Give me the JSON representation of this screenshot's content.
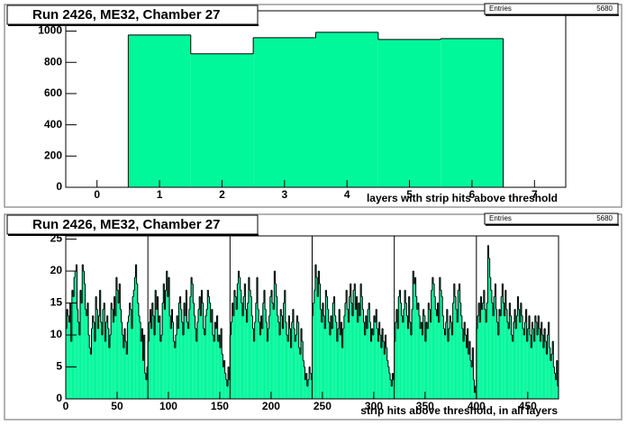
{
  "chart_data": [
    {
      "type": "histogram",
      "title": "Run 2426, ME32, Chamber 27",
      "x_label": "layers with strip hits above threshold",
      "stats": {
        "label": "Entries",
        "value": 5680
      },
      "bins": [
        -0.5,
        0.5,
        1.5,
        2.5,
        3.5,
        4.5,
        5.5,
        6.5,
        7.5
      ],
      "values": [
        0,
        975,
        855,
        958,
        992,
        946,
        952,
        0
      ],
      "color": "#00f79a",
      "xlim": [
        -0.5,
        7.5
      ],
      "xticks": [
        0,
        1,
        2,
        3,
        4,
        5,
        6,
        7
      ],
      "ylim": [
        0,
        1130
      ],
      "yticks": [
        0,
        200,
        400,
        600,
        800,
        1000
      ]
    },
    {
      "type": "histogram",
      "title": "Run 2426, ME32, Chamber 27",
      "x_label": "strip hits above threshold, in all layers",
      "stats": {
        "label": "Entries",
        "value": 5680
      },
      "color": "#00f79a",
      "separators": [
        80,
        160,
        240,
        320,
        400
      ],
      "bins": [
        0,
        1,
        2,
        3,
        4,
        5,
        6,
        7,
        8,
        9,
        10,
        11,
        12,
        13,
        14,
        15,
        16,
        17,
        18,
        19,
        20,
        21,
        22,
        23,
        24,
        25,
        26,
        27,
        28,
        29,
        30,
        31,
        32,
        33,
        34,
        35,
        36,
        37,
        38,
        39,
        40,
        41,
        42,
        43,
        44,
        45,
        46,
        47,
        48,
        49,
        50,
        51,
        52,
        53,
        54,
        55,
        56,
        57,
        58,
        59,
        60,
        61,
        62,
        63,
        64,
        65,
        66,
        67,
        68,
        69,
        70,
        71,
        72,
        73,
        74,
        75,
        76,
        77,
        78,
        79,
        80,
        81,
        82,
        83,
        84,
        85,
        86,
        87,
        88,
        89,
        90,
        91,
        92,
        93,
        94,
        95,
        96,
        97,
        98,
        99,
        100,
        101,
        102,
        103,
        104,
        105,
        106,
        107,
        108,
        109,
        110,
        111,
        112,
        113,
        114,
        115,
        116,
        117,
        118,
        119,
        120,
        121,
        122,
        123,
        124,
        125,
        126,
        127,
        128,
        129,
        130,
        131,
        132,
        133,
        134,
        135,
        136,
        137,
        138,
        139,
        140,
        141,
        142,
        143,
        144,
        145,
        146,
        147,
        148,
        149,
        150,
        151,
        152,
        153,
        154,
        155,
        156,
        157,
        158,
        159,
        160,
        161,
        162,
        163,
        164,
        165,
        166,
        167,
        168,
        169,
        170,
        171,
        172,
        173,
        174,
        175,
        176,
        177,
        178,
        179,
        180,
        181,
        182,
        183,
        184,
        185,
        186,
        187,
        188,
        189,
        190,
        191,
        192,
        193,
        194,
        195,
        196,
        197,
        198,
        199,
        200,
        201,
        202,
        203,
        204,
        205,
        206,
        207,
        208,
        209,
        210,
        211,
        212,
        213,
        214,
        215,
        216,
        217,
        218,
        219,
        220,
        221,
        222,
        223,
        224,
        225,
        226,
        227,
        228,
        229,
        230,
        231,
        232,
        233,
        234,
        235,
        236,
        237,
        238,
        239,
        240,
        241,
        242,
        243,
        244,
        245,
        246,
        247,
        248,
        249,
        250,
        251,
        252,
        253,
        254,
        255,
        256,
        257,
        258,
        259,
        260,
        261,
        262,
        263,
        264,
        265,
        266,
        267,
        268,
        269,
        270,
        271,
        272,
        273,
        274,
        275,
        276,
        277,
        278,
        279,
        280,
        281,
        282,
        283,
        284,
        285,
        286,
        287,
        288,
        289,
        290,
        291,
        292,
        293,
        294,
        295,
        296,
        297,
        298,
        299,
        300,
        301,
        302,
        303,
        304,
        305,
        306,
        307,
        308,
        309,
        310,
        311,
        312,
        313,
        314,
        315,
        316,
        317,
        318,
        319,
        320,
        321,
        322,
        323,
        324,
        325,
        326,
        327,
        328,
        329,
        330,
        331,
        332,
        333,
        334,
        335,
        336,
        337,
        338,
        339,
        340,
        341,
        342,
        343,
        344,
        345,
        346,
        347,
        348,
        349,
        350,
        351,
        352,
        353,
        354,
        355,
        356,
        357,
        358,
        359,
        360,
        361,
        362,
        363,
        364,
        365,
        366,
        367,
        368,
        369,
        370,
        371,
        372,
        373,
        374,
        375,
        376,
        377,
        378,
        379,
        380,
        381,
        382,
        383,
        384,
        385,
        386,
        387,
        388,
        389,
        390,
        391,
        392,
        393,
        394,
        395,
        396,
        397,
        398,
        399,
        400,
        401,
        402,
        403,
        404,
        405,
        406,
        407,
        408,
        409,
        410,
        411,
        412,
        413,
        414,
        415,
        416,
        417,
        418,
        419,
        420,
        421,
        422,
        423,
        424,
        425,
        426,
        427,
        428,
        429,
        430,
        431,
        432,
        433,
        434,
        435,
        436,
        437,
        438,
        439,
        440,
        441,
        442,
        443,
        444,
        445,
        446,
        447,
        448,
        449,
        450,
        451,
        452,
        453,
        454,
        455,
        456,
        457,
        458,
        459,
        460,
        461,
        462,
        463,
        464,
        465,
        466,
        467,
        468,
        469,
        470,
        471,
        472,
        473,
        474,
        475,
        476,
        477,
        478,
        479,
        480
      ],
      "values": [
        11,
        14,
        13,
        12,
        15,
        9,
        17,
        16,
        19,
        20,
        21,
        14,
        12,
        10,
        17,
        15,
        21,
        20,
        18,
        14,
        13,
        15,
        10,
        8,
        7,
        11,
        13,
        12,
        9,
        16,
        14,
        11,
        13,
        17,
        12,
        10,
        14,
        15,
        9,
        12,
        13,
        11,
        8,
        10,
        15,
        14,
        12,
        16,
        13,
        19,
        17,
        15,
        18,
        14,
        12,
        10,
        8,
        11,
        9,
        7,
        12,
        13,
        15,
        14,
        11,
        16,
        17,
        19,
        21,
        18,
        15,
        13,
        12,
        9,
        11,
        6,
        10,
        4,
        3,
        5,
        9,
        12,
        14,
        11,
        15,
        13,
        10,
        17,
        14,
        16,
        12,
        13,
        9,
        10,
        15,
        18,
        14,
        17,
        20,
        16,
        19,
        13,
        11,
        14,
        12,
        9,
        8,
        10,
        13,
        11,
        15,
        16,
        14,
        12,
        10,
        15,
        13,
        17,
        12,
        11,
        14,
        16,
        19,
        18,
        15,
        13,
        11,
        9,
        12,
        14,
        16,
        13,
        17,
        15,
        11,
        10,
        13,
        14,
        17,
        16,
        15,
        12,
        14,
        10,
        9,
        12,
        11,
        13,
        9,
        10,
        8,
        11,
        7,
        5,
        6,
        4,
        3,
        2,
        5,
        3,
        10,
        12,
        15,
        13,
        17,
        16,
        14,
        18,
        20,
        19,
        17,
        15,
        13,
        16,
        18,
        14,
        12,
        15,
        19,
        17,
        16,
        13,
        11,
        9,
        12,
        15,
        19,
        14,
        12,
        10,
        13,
        11,
        15,
        17,
        14,
        12,
        9,
        11,
        13,
        16,
        17,
        15,
        14,
        20,
        18,
        16,
        13,
        12,
        10,
        14,
        13,
        11,
        15,
        17,
        12,
        10,
        9,
        13,
        11,
        8,
        12,
        14,
        11,
        9,
        10,
        13,
        12,
        8,
        7,
        11,
        9,
        6,
        5,
        3,
        4,
        2,
        3,
        5,
        4,
        3,
        13,
        15,
        17,
        21,
        19,
        16,
        20,
        18,
        14,
        12,
        15,
        13,
        11,
        17,
        16,
        14,
        12,
        10,
        13,
        11,
        15,
        16,
        13,
        12,
        9,
        11,
        14,
        10,
        12,
        8,
        11,
        13,
        15,
        17,
        14,
        12,
        16,
        18,
        15,
        13,
        17,
        18,
        14,
        16,
        12,
        15,
        13,
        18,
        16,
        14,
        12,
        10,
        13,
        11,
        14,
        15,
        12,
        9,
        11,
        10,
        13,
        12,
        14,
        11,
        9,
        12,
        10,
        8,
        11,
        9,
        7,
        10,
        8,
        6,
        5,
        4,
        3,
        2,
        4,
        3,
        9,
        12,
        14,
        11,
        16,
        17,
        15,
        13,
        12,
        14,
        17,
        15,
        13,
        11,
        16,
        12,
        10,
        14,
        20,
        18,
        19,
        16,
        14,
        15,
        13,
        11,
        12,
        10,
        14,
        13,
        9,
        12,
        11,
        15,
        14,
        12,
        17,
        19,
        18,
        16,
        14,
        13,
        15,
        12,
        19,
        17,
        16,
        13,
        11,
        10,
        12,
        14,
        9,
        11,
        13,
        12,
        10,
        15,
        18,
        16,
        14,
        12,
        17,
        18,
        15,
        13,
        11,
        9,
        12,
        10,
        8,
        11,
        7,
        9,
        6,
        5,
        8,
        3,
        1,
        2,
        11,
        13,
        15,
        12,
        16,
        14,
        15,
        17,
        14,
        12,
        15,
        24,
        22,
        19,
        17,
        15,
        13,
        16,
        18,
        14,
        12,
        10,
        14,
        13,
        16,
        18,
        15,
        13,
        17,
        14,
        12,
        11,
        15,
        13,
        10,
        9,
        12,
        14,
        11,
        13,
        16,
        14,
        12,
        15,
        13,
        11,
        10,
        12,
        14,
        9,
        11,
        13,
        10,
        8,
        12,
        11,
        9,
        13,
        12,
        10,
        13,
        11,
        9,
        12,
        10,
        8,
        11,
        9,
        7,
        10,
        12,
        8,
        6,
        7,
        9,
        5,
        4,
        3,
        6,
        2
      ],
      "xlim": [
        0,
        480
      ],
      "xticks": [
        0,
        50,
        100,
        150,
        200,
        250,
        300,
        350,
        400,
        450
      ],
      "ylim": [
        0,
        25.5
      ],
      "yticks": [
        0,
        5,
        10,
        15,
        20,
        25
      ]
    }
  ]
}
